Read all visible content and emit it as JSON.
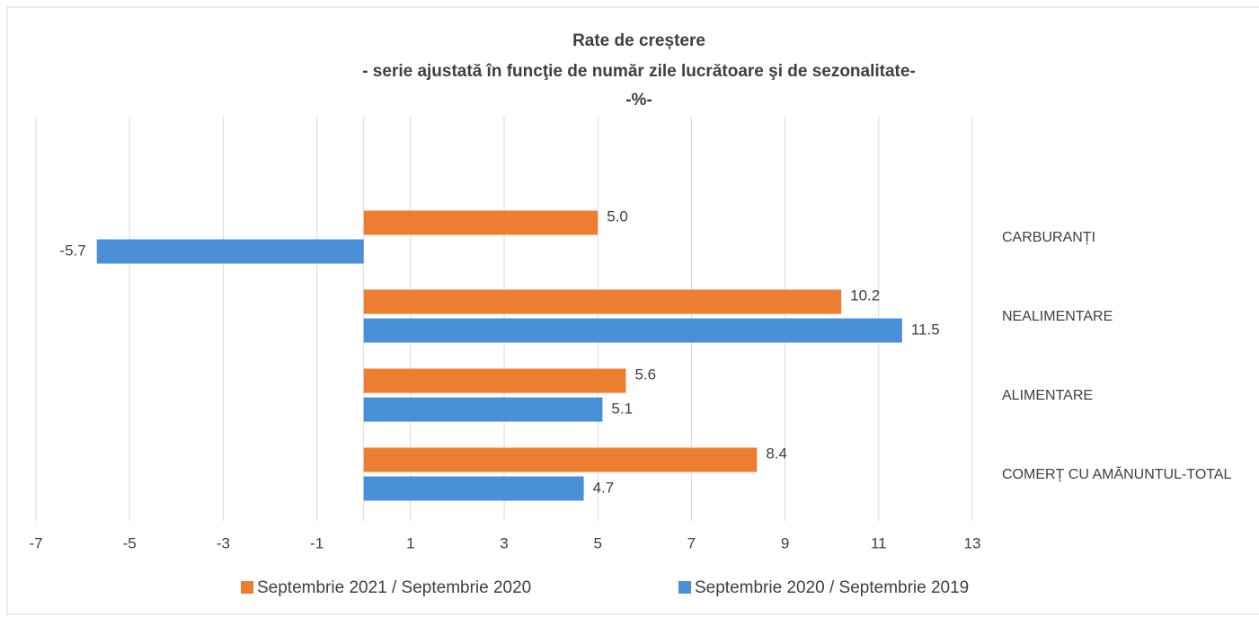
{
  "chart_data": {
    "type": "bar",
    "orientation": "horizontal",
    "title": "Rate de creștere",
    "subtitle": "- serie ajustată în funcţie de număr zile lucrătoare şi de sezonalitate-",
    "unit_label": "-%-",
    "categories": [
      "CARBURANȚI",
      "NEALIMENTARE",
      "ALIMENTARE",
      "COMERȚ CU AMĂNUNTUL-TOTAL"
    ],
    "series": [
      {
        "name": "Septembrie 2021 / Septembrie 2020",
        "color": "#ed7d31",
        "values": [
          5.0,
          10.2,
          5.6,
          8.4
        ],
        "value_labels": [
          "5.0",
          "10.2",
          "5.6",
          "8.4"
        ]
      },
      {
        "name": "Septembrie 2020 / Septembrie 2019",
        "color": "#4a90d9",
        "values": [
          -5.7,
          11.5,
          5.1,
          4.7
        ],
        "value_labels": [
          "-5.7",
          "11.5",
          "5.1",
          "4.7"
        ]
      }
    ],
    "xlim": [
      -7,
      13
    ],
    "xticks": [
      -7,
      -5,
      -3,
      -1,
      1,
      3,
      5,
      7,
      9,
      11,
      13
    ],
    "grid": true,
    "legend": "bottom"
  }
}
